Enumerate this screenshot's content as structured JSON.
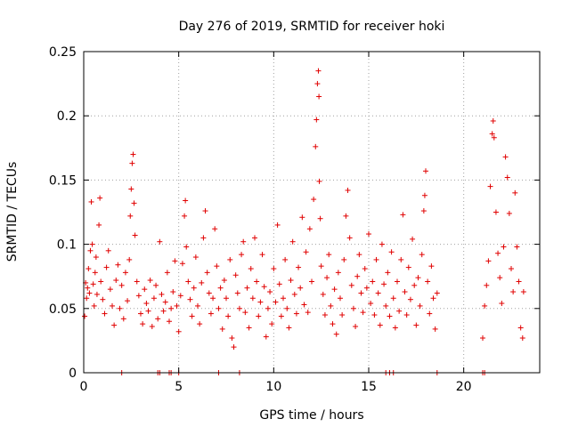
{
  "chart_data": {
    "type": "scatter",
    "title": "Day 276 of 2019, SRMTID for receiver hoki",
    "xlabel": "GPS time / hours",
    "ylabel": "SRMTID / TECUs",
    "xlim": [
      0,
      24
    ],
    "ylim": [
      0,
      0.25
    ],
    "xticks": [
      0,
      5,
      10,
      15,
      20
    ],
    "xtick_labels": [
      "0",
      "5",
      "10",
      "15",
      "20"
    ],
    "yticks": [
      0,
      0.05,
      0.1,
      0.15,
      0.2,
      0.25
    ],
    "ytick_labels": [
      "0",
      "0.05",
      "0.1",
      "0.15",
      "0.2",
      "0.25"
    ],
    "grid": true,
    "marker": "+",
    "color": "#e00000",
    "series": [
      {
        "name": "SRMTID",
        "points": [
          [
            0.05,
            0.044
          ],
          [
            0.1,
            0.07
          ],
          [
            0.15,
            0.058
          ],
          [
            0.2,
            0.066
          ],
          [
            0.25,
            0.081
          ],
          [
            0.3,
            0.062
          ],
          [
            0.35,
            0.095
          ],
          [
            0.4,
            0.133
          ],
          [
            0.45,
            0.1
          ],
          [
            0.5,
            0.069
          ],
          [
            0.55,
            0.052
          ],
          [
            0.6,
            0.078
          ],
          [
            0.65,
            0.09
          ],
          [
            0.7,
            0.061
          ],
          [
            0.8,
            0.115
          ],
          [
            0.85,
            0.136
          ],
          [
            0.9,
            0.071
          ],
          [
            1.0,
            0.057
          ],
          [
            1.1,
            0.046
          ],
          [
            1.2,
            0.082
          ],
          [
            1.3,
            0.095
          ],
          [
            1.4,
            0.065
          ],
          [
            1.5,
            0.052
          ],
          [
            1.6,
            0.037
          ],
          [
            1.7,
            0.072
          ],
          [
            1.8,
            0.084
          ],
          [
            1.9,
            0.05
          ],
          [
            2.0,
            0.068
          ],
          [
            2.1,
            0.042
          ],
          [
            2.2,
            0.078
          ],
          [
            2.3,
            0.056
          ],
          [
            2.4,
            0.088
          ],
          [
            2.45,
            0.122
          ],
          [
            2.5,
            0.143
          ],
          [
            2.55,
            0.163
          ],
          [
            2.6,
            0.17
          ],
          [
            2.65,
            0.132
          ],
          [
            2.7,
            0.107
          ],
          [
            2.8,
            0.071
          ],
          [
            2.9,
            0.06
          ],
          [
            3.0,
            0.046
          ],
          [
            3.1,
            0.038
          ],
          [
            3.2,
            0.065
          ],
          [
            3.3,
            0.054
          ],
          [
            3.4,
            0.048
          ],
          [
            3.5,
            0.072
          ],
          [
            3.6,
            0.036
          ],
          [
            3.7,
            0.058
          ],
          [
            3.8,
            0.068
          ],
          [
            3.9,
            0.042
          ],
          [
            4.0,
            0.102
          ],
          [
            4.1,
            0.061
          ],
          [
            4.2,
            0.048
          ],
          [
            4.3,
            0.055
          ],
          [
            4.4,
            0.078
          ],
          [
            4.5,
            0.04
          ],
          [
            4.6,
            0.05
          ],
          [
            4.7,
            0.063
          ],
          [
            4.8,
            0.087
          ],
          [
            4.9,
            0.052
          ],
          [
            5.0,
            0.032
          ],
          [
            5.1,
            0.06
          ],
          [
            5.2,
            0.085
          ],
          [
            5.3,
            0.122
          ],
          [
            5.35,
            0.134
          ],
          [
            5.4,
            0.098
          ],
          [
            5.5,
            0.071
          ],
          [
            5.6,
            0.057
          ],
          [
            5.7,
            0.044
          ],
          [
            5.8,
            0.066
          ],
          [
            5.9,
            0.09
          ],
          [
            6.0,
            0.052
          ],
          [
            6.1,
            0.038
          ],
          [
            6.2,
            0.07
          ],
          [
            6.3,
            0.105
          ],
          [
            6.4,
            0.126
          ],
          [
            6.5,
            0.078
          ],
          [
            6.6,
            0.062
          ],
          [
            6.7,
            0.046
          ],
          [
            6.8,
            0.058
          ],
          [
            6.9,
            0.112
          ],
          [
            7.0,
            0.083
          ],
          [
            7.1,
            0.05
          ],
          [
            7.2,
            0.066
          ],
          [
            7.3,
            0.034
          ],
          [
            7.4,
            0.072
          ],
          [
            7.5,
            0.058
          ],
          [
            7.6,
            0.044
          ],
          [
            7.7,
            0.088
          ],
          [
            7.8,
            0.027
          ],
          [
            7.9,
            0.02
          ],
          [
            8.0,
            0.076
          ],
          [
            8.1,
            0.062
          ],
          [
            8.2,
            0.05
          ],
          [
            8.3,
            0.092
          ],
          [
            8.4,
            0.102
          ],
          [
            8.5,
            0.047
          ],
          [
            8.6,
            0.066
          ],
          [
            8.7,
            0.035
          ],
          [
            8.8,
            0.081
          ],
          [
            8.9,
            0.058
          ],
          [
            9.0,
            0.105
          ],
          [
            9.1,
            0.071
          ],
          [
            9.2,
            0.044
          ],
          [
            9.3,
            0.055
          ],
          [
            9.4,
            0.092
          ],
          [
            9.5,
            0.067
          ],
          [
            9.6,
            0.028
          ],
          [
            9.7,
            0.05
          ],
          [
            9.8,
            0.063
          ],
          [
            9.9,
            0.038
          ],
          [
            10.0,
            0.081
          ],
          [
            10.1,
            0.055
          ],
          [
            10.2,
            0.115
          ],
          [
            10.3,
            0.069
          ],
          [
            10.4,
            0.044
          ],
          [
            10.5,
            0.058
          ],
          [
            10.6,
            0.088
          ],
          [
            10.7,
            0.05
          ],
          [
            10.8,
            0.035
          ],
          [
            10.9,
            0.072
          ],
          [
            11.0,
            0.102
          ],
          [
            11.1,
            0.061
          ],
          [
            11.2,
            0.046
          ],
          [
            11.3,
            0.082
          ],
          [
            11.4,
            0.066
          ],
          [
            11.5,
            0.121
          ],
          [
            11.6,
            0.053
          ],
          [
            11.7,
            0.094
          ],
          [
            11.8,
            0.047
          ],
          [
            11.9,
            0.112
          ],
          [
            12.0,
            0.071
          ],
          [
            12.1,
            0.135
          ],
          [
            12.2,
            0.176
          ],
          [
            12.25,
            0.197
          ],
          [
            12.3,
            0.225
          ],
          [
            12.35,
            0.235
          ],
          [
            12.38,
            0.215
          ],
          [
            12.4,
            0.149
          ],
          [
            12.45,
            0.12
          ],
          [
            12.5,
            0.083
          ],
          [
            12.6,
            0.061
          ],
          [
            12.7,
            0.045
          ],
          [
            12.8,
            0.074
          ],
          [
            12.9,
            0.092
          ],
          [
            13.0,
            0.052
          ],
          [
            13.1,
            0.038
          ],
          [
            13.2,
            0.065
          ],
          [
            13.3,
            0.03
          ],
          [
            13.4,
            0.078
          ],
          [
            13.5,
            0.058
          ],
          [
            13.6,
            0.045
          ],
          [
            13.7,
            0.088
          ],
          [
            13.8,
            0.122
          ],
          [
            13.9,
            0.142
          ],
          [
            14.0,
            0.105
          ],
          [
            14.1,
            0.068
          ],
          [
            14.2,
            0.05
          ],
          [
            14.3,
            0.036
          ],
          [
            14.4,
            0.075
          ],
          [
            14.5,
            0.092
          ],
          [
            14.6,
            0.062
          ],
          [
            14.7,
            0.047
          ],
          [
            14.8,
            0.081
          ],
          [
            14.9,
            0.066
          ],
          [
            15.0,
            0.108
          ],
          [
            15.1,
            0.054
          ],
          [
            15.2,
            0.071
          ],
          [
            15.3,
            0.045
          ],
          [
            15.4,
            0.088
          ],
          [
            15.5,
            0.062
          ],
          [
            15.6,
            0.037
          ],
          [
            15.7,
            0.1
          ],
          [
            15.8,
            0.069
          ],
          [
            15.9,
            0.052
          ],
          [
            16.0,
            0.078
          ],
          [
            16.1,
            0.044
          ],
          [
            16.2,
            0.094
          ],
          [
            16.3,
            0.058
          ],
          [
            16.4,
            0.035
          ],
          [
            16.5,
            0.071
          ],
          [
            16.6,
            0.048
          ],
          [
            16.7,
            0.088
          ],
          [
            16.8,
            0.123
          ],
          [
            16.9,
            0.063
          ],
          [
            17.0,
            0.045
          ],
          [
            17.1,
            0.082
          ],
          [
            17.2,
            0.057
          ],
          [
            17.3,
            0.104
          ],
          [
            17.4,
            0.068
          ],
          [
            17.5,
            0.037
          ],
          [
            17.6,
            0.074
          ],
          [
            17.7,
            0.052
          ],
          [
            17.8,
            0.092
          ],
          [
            17.9,
            0.126
          ],
          [
            17.95,
            0.138
          ],
          [
            18.0,
            0.157
          ],
          [
            18.1,
            0.071
          ],
          [
            18.2,
            0.046
          ],
          [
            18.3,
            0.083
          ],
          [
            18.4,
            0.058
          ],
          [
            18.5,
            0.034
          ],
          [
            18.6,
            0.062
          ],
          [
            21.0,
            0.027
          ],
          [
            21.1,
            0.052
          ],
          [
            21.2,
            0.068
          ],
          [
            21.3,
            0.087
          ],
          [
            21.4,
            0.145
          ],
          [
            21.5,
            0.186
          ],
          [
            21.55,
            0.196
          ],
          [
            21.6,
            0.183
          ],
          [
            21.7,
            0.125
          ],
          [
            21.8,
            0.093
          ],
          [
            21.9,
            0.074
          ],
          [
            22.0,
            0.054
          ],
          [
            22.1,
            0.098
          ],
          [
            22.2,
            0.168
          ],
          [
            22.3,
            0.152
          ],
          [
            22.4,
            0.124
          ],
          [
            22.5,
            0.081
          ],
          [
            22.6,
            0.063
          ],
          [
            22.7,
            0.14
          ],
          [
            22.8,
            0.098
          ],
          [
            22.9,
            0.071
          ],
          [
            23.0,
            0.035
          ],
          [
            23.1,
            0.027
          ],
          [
            23.15,
            0.063
          ]
        ]
      }
    ],
    "zero_points": [
      2.0,
      3.9,
      4.0,
      4.5,
      4.6,
      5.0,
      7.1,
      8.2,
      15.9,
      16.1,
      16.3,
      18.6,
      21.0,
      21.1
    ]
  }
}
